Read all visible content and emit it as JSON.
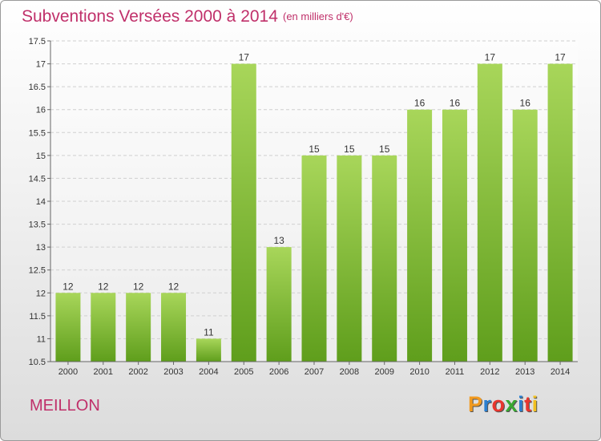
{
  "header": {
    "title": "Subventions Versées 2000 à 2014",
    "subtitle": "(en milliers d'€)"
  },
  "footer": {
    "commune": "MEILLON",
    "brand": "Proxiti",
    "brand_colors": [
      "#f29a1f",
      "#2a7fd0",
      "#e8362e",
      "#3aa832",
      "#2a7fd0",
      "#e8362e",
      "#f2c01f"
    ]
  },
  "colors": {
    "title": "#c0306a",
    "bar_top": "#a8d65a",
    "bar_bottom": "#5f9e1c",
    "grid": "#d0d0d0"
  },
  "chart_data": {
    "type": "bar",
    "categories": [
      "2000",
      "2001",
      "2002",
      "2003",
      "2004",
      "2005",
      "2006",
      "2007",
      "2008",
      "2009",
      "2010",
      "2011",
      "2012",
      "2013",
      "2014"
    ],
    "values": [
      12,
      12,
      12,
      12,
      11,
      17,
      13,
      15,
      15,
      15,
      16,
      16,
      17,
      16,
      17
    ],
    "value_labels": [
      "12",
      "12",
      "12",
      "12",
      "11",
      "17",
      "13",
      "15",
      "15",
      "15",
      "16",
      "16",
      "17",
      "16",
      "17"
    ],
    "title": "Subventions Versées 2000 à 2014",
    "ylim": [
      10.5,
      17.5
    ],
    "yticks": [
      10.5,
      11,
      11.5,
      12,
      12.5,
      13,
      13.5,
      14,
      14.5,
      15,
      15.5,
      16,
      16.5,
      17,
      17.5
    ],
    "ytick_labels": [
      "10.5",
      "11",
      "11.5",
      "12",
      "12.5",
      "13",
      "13.5",
      "14",
      "14.5",
      "15",
      "15.5",
      "16",
      "16.5",
      "17",
      "17.5"
    ],
    "grid": true,
    "legend": "none"
  }
}
